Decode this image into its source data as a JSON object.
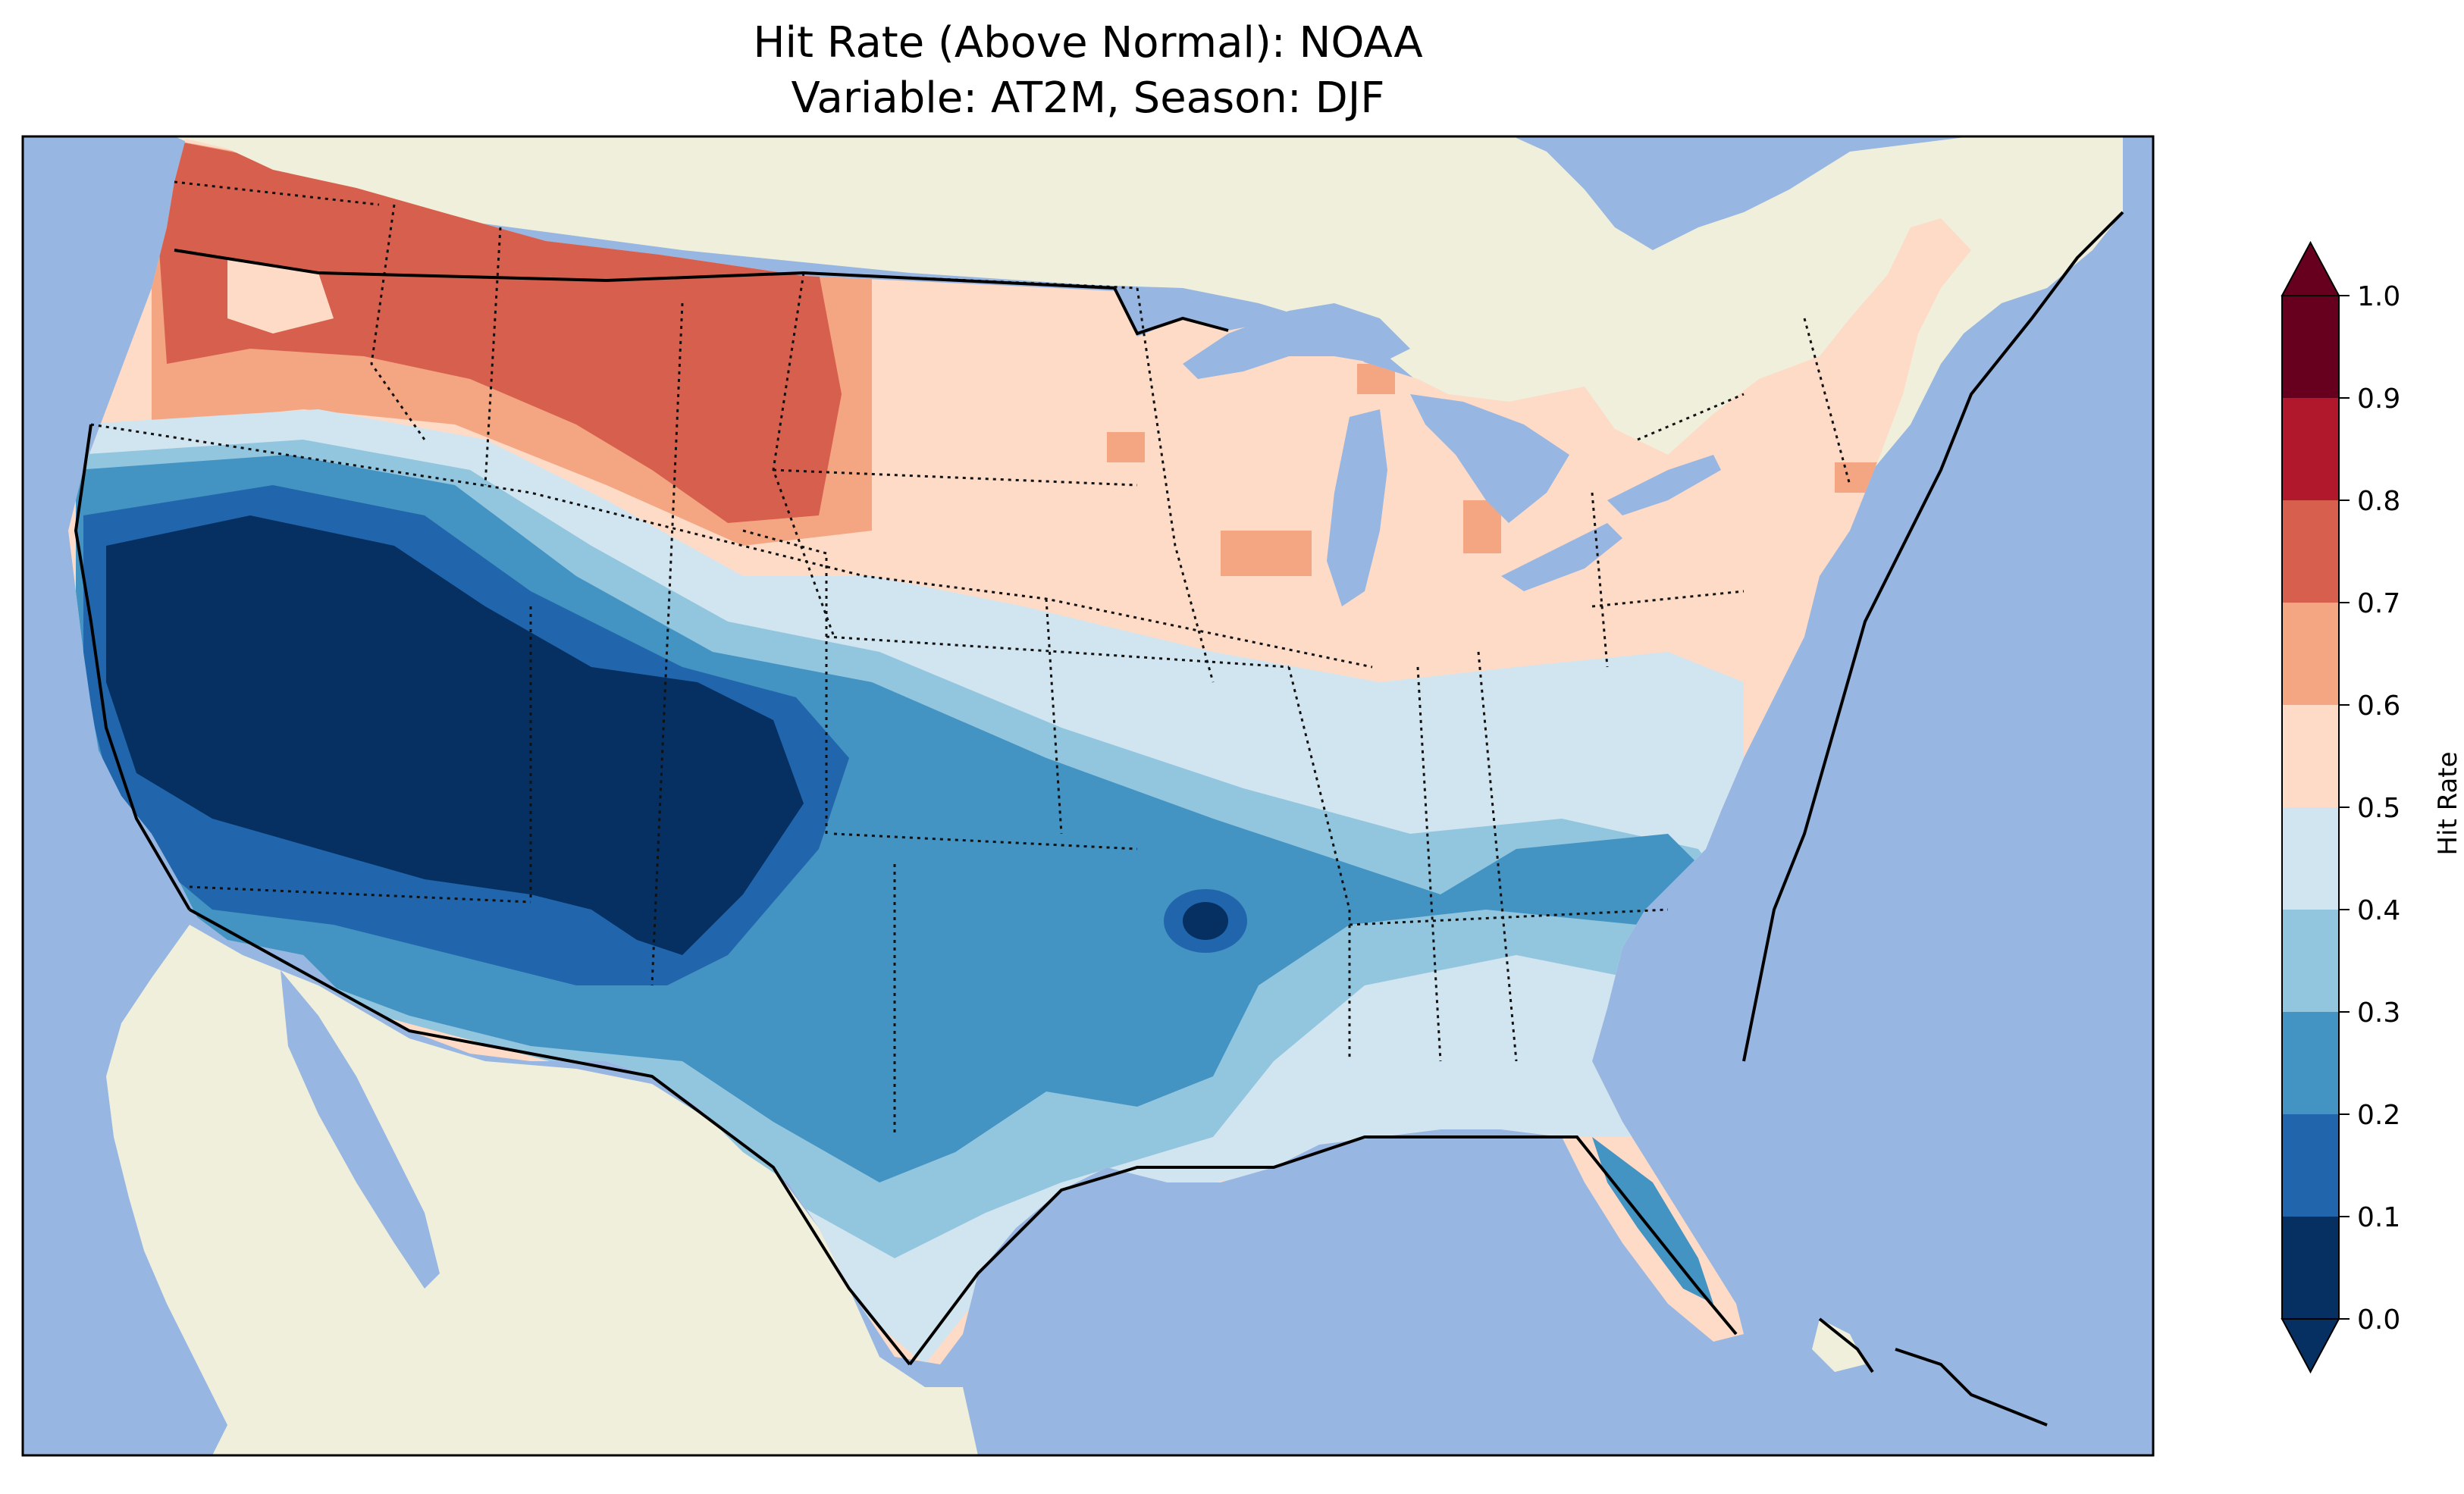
{
  "title": {
    "line1": "Hit Rate (Above Normal): NOAA",
    "line2": "Variable: AT2M, Season: DJF"
  },
  "map": {
    "region": "Contiguous United States",
    "ocean_color": "#97b6e1",
    "land_color": "#efefdb",
    "lake_color": "#97b6e1"
  },
  "colorbar": {
    "label": "Hit Rate",
    "extend": "both",
    "ticks": [
      "0.0",
      "0.1",
      "0.2",
      "0.3",
      "0.4",
      "0.5",
      "0.6",
      "0.7",
      "0.8",
      "0.9",
      "1.0"
    ],
    "colors": [
      "#053061",
      "#2166ac",
      "#4393c3",
      "#92c5de",
      "#d1e5f0",
      "#fddbc7",
      "#f4a582",
      "#d6604d",
      "#b2182b",
      "#67001f"
    ]
  }
}
